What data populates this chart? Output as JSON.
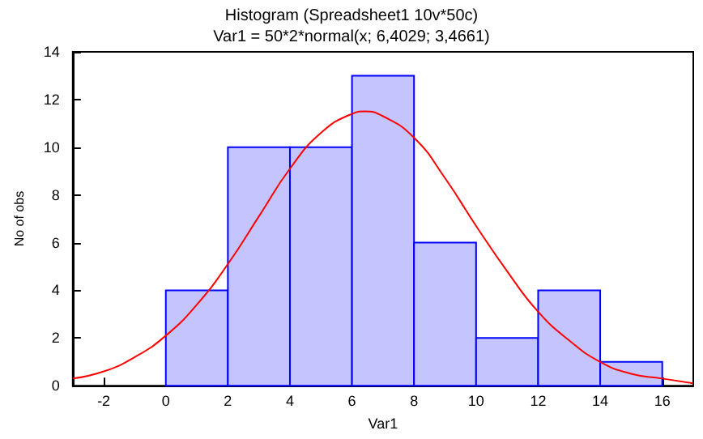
{
  "chart_data": [
    {
      "type": "histogram",
      "title": "Histogram (Spreadsheet1 10v*50c)",
      "subtitle": "Var1 = 50*2*normal(x; 6,4029; 3,4661)",
      "xlabel": "Var1",
      "ylabel": "No of obs",
      "bins": [
        0,
        2,
        4,
        6,
        8,
        10,
        12,
        14,
        16
      ],
      "values": [
        4,
        10,
        10,
        13,
        6,
        2,
        4,
        1
      ],
      "color": "#0000ff",
      "series": [
        {
          "type": "line",
          "color": "#ff0000",
          "x": [
            -3,
            -2,
            -1,
            0,
            1,
            2,
            3,
            4,
            5,
            6,
            6.4,
            7,
            8,
            9,
            10,
            11,
            12,
            13,
            14,
            15,
            16,
            17
          ],
          "values": [
            0.3,
            0.6,
            1.2,
            2.1,
            3.4,
            5.1,
            7.1,
            9.1,
            10.6,
            11.4,
            11.5,
            11.3,
            10.4,
            8.7,
            6.7,
            4.8,
            3.1,
            1.9,
            1.0,
            0.5,
            0.3,
            0.1
          ]
        }
      ],
      "xlim": [
        -3,
        17
      ],
      "xticks": [
        -2,
        0,
        2,
        4,
        6,
        8,
        10,
        12,
        14,
        16
      ],
      "ylim": [
        0,
        14
      ],
      "yticks": [
        0,
        2,
        4,
        6,
        8,
        10,
        12,
        14
      ],
      "grid": false,
      "marker": "none"
    }
  ]
}
